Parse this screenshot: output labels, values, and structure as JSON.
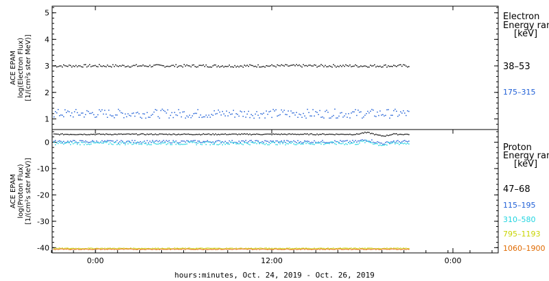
{
  "chart_data": [
    {
      "type": "scatter",
      "panel": "electron",
      "ylabel": [
        "ACE EPAM",
        "log(Electron Flux)",
        "[1/(cm²s ster MeV)]"
      ],
      "yticks": [
        1,
        2,
        3,
        4,
        5
      ],
      "ylim": [
        0.6,
        5.25
      ],
      "legend_title": [
        "Electron",
        "Energy ranges",
        "[keV]"
      ],
      "series": [
        {
          "name": "38–53",
          "color": "#000000",
          "level": 3.0,
          "spread": 0.05
        },
        {
          "name": "175–315",
          "color": "#1f5fd6",
          "level": 1.2,
          "spread": 0.17
        }
      ]
    },
    {
      "type": "scatter",
      "panel": "proton",
      "ylabel": [
        "ACE EPAM",
        "log(Proton Flux)",
        "[1/(cm²s ster MeV)]"
      ],
      "yticks": [
        0,
        -10,
        -20,
        -30,
        -40
      ],
      "ylim": [
        -42,
        4.8
      ],
      "legend_title": [
        "Proton",
        "Energy ranges",
        "[keV]"
      ],
      "series": [
        {
          "name": "47–68",
          "color": "#000000",
          "level": 3.0,
          "spread": 0.2
        },
        {
          "name": "115–195",
          "color": "#1f5fd6",
          "level": 0.2,
          "spread": 0.5
        },
        {
          "name": "310–580",
          "color": "#1fd4e0",
          "level": -0.4,
          "spread": 0.6
        },
        {
          "name": "795–1193",
          "color": "#c8d400",
          "level": -40.3,
          "spread": 0.15
        },
        {
          "name": "1060–1900",
          "color": "#e06a00",
          "level": -40.6,
          "spread": 0.15
        }
      ]
    }
  ],
  "x_axis": {
    "ticks": [
      "0:00",
      "12:00",
      "0:00"
    ],
    "label": "hours:minutes, Oct. 24, 2019 - Oct. 26, 2019"
  }
}
